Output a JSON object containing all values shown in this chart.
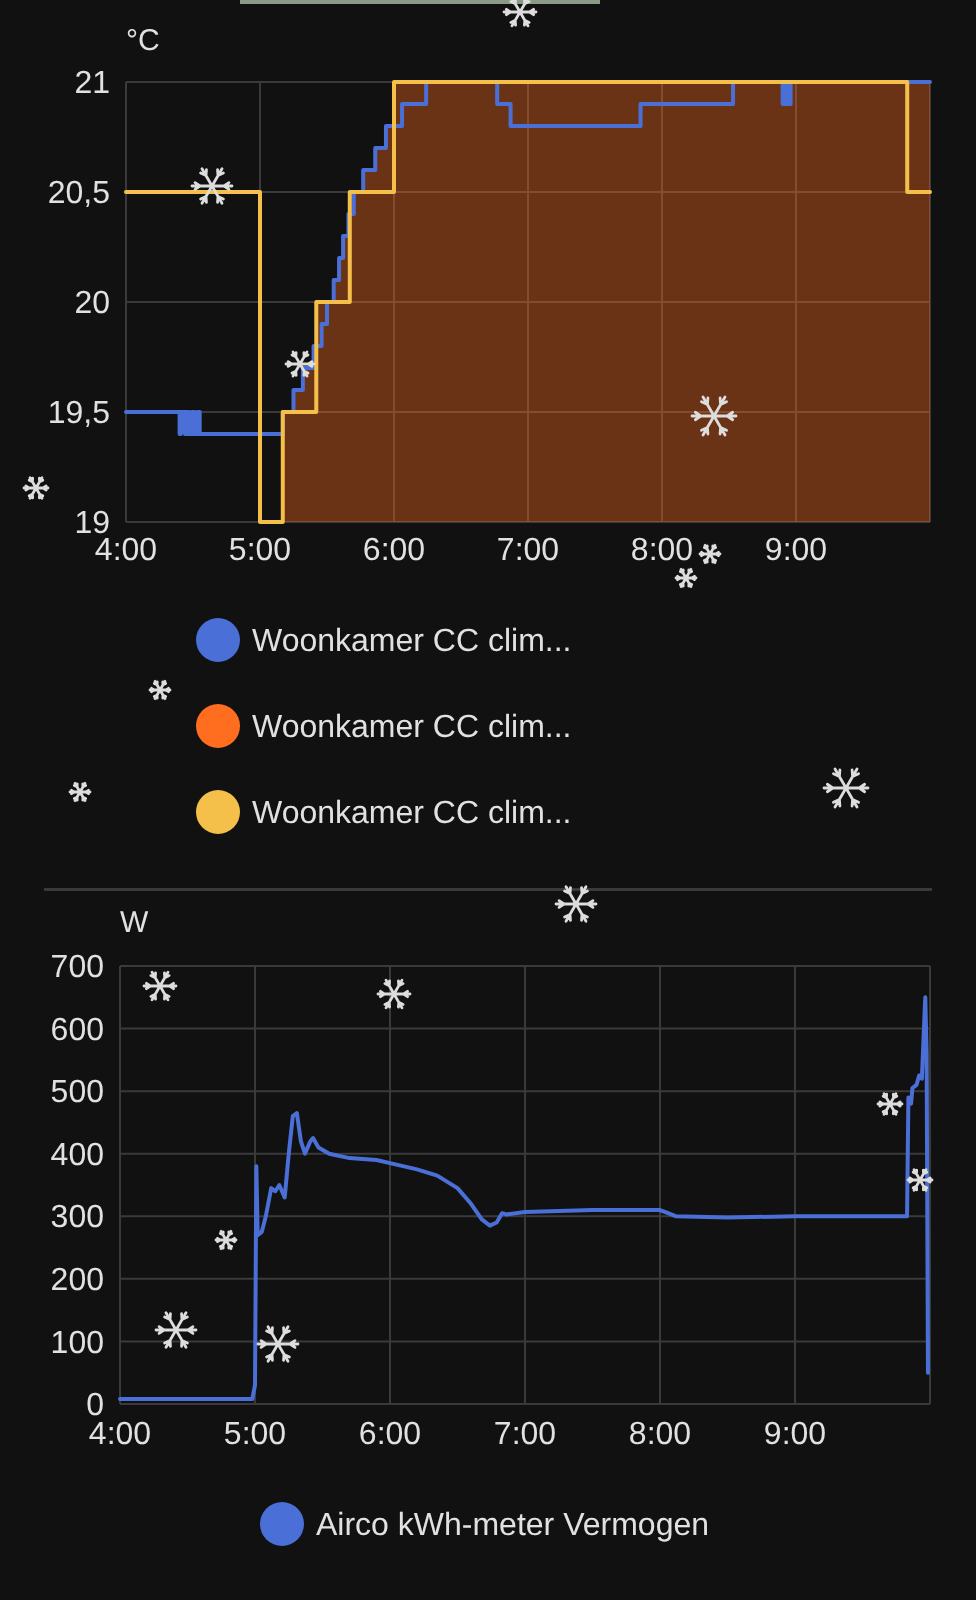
{
  "chart_data": [
    {
      "type": "step",
      "ylabel": "°C",
      "xlim": [
        4,
        10
      ],
      "ylim": [
        19,
        21
      ],
      "xticks": [
        {
          "value": 4,
          "label": "4:00"
        },
        {
          "value": 5,
          "label": "5:00"
        },
        {
          "value": 6,
          "label": "6:00"
        },
        {
          "value": 7,
          "label": "7:00"
        },
        {
          "value": 8,
          "label": "8:00"
        },
        {
          "value": 9,
          "label": "9:00"
        }
      ],
      "yticks": [
        19,
        {
          "value": 19.5,
          "label": "19,5"
        },
        20,
        {
          "value": 20.5,
          "label": "20,5"
        },
        21
      ],
      "grid": true,
      "legend": "bottom",
      "series": [
        {
          "name": "Woonkamer CC clim...",
          "color": "#4a6fd6",
          "x": [
            4,
            4.4,
            4.41,
            4.44,
            4.45,
            4.47,
            4.49,
            4.51,
            4.53,
            4.55,
            4.6,
            5.17,
            5.25,
            5.32,
            5.4,
            5.46,
            5.5,
            5.55,
            5.59,
            5.62,
            5.66,
            5.7,
            5.77,
            5.86,
            5.94,
            6.06,
            6.24,
            6.77,
            6.87,
            7.84,
            8.53,
            8.9,
            8.92,
            8.94,
            8.96,
            9.03,
            10
          ],
          "values": [
            19.5,
            19.4,
            19.5,
            19.4,
            19.5,
            19.4,
            19.5,
            19.4,
            19.5,
            19.4,
            19.4,
            19.5,
            19.6,
            19.7,
            19.8,
            19.9,
            20,
            20.1,
            20.2,
            20.3,
            20.4,
            20.5,
            20.6,
            20.7,
            20.8,
            20.9,
            21,
            20.9,
            20.8,
            20.9,
            21,
            20.9,
            21,
            20.9,
            21,
            21,
            21
          ]
        },
        {
          "name": "Woonkamer CC clim...",
          "type": "area",
          "color": "#ff6d1f",
          "x": [
            5.17,
            5.25,
            5.32,
            5.42,
            5.5,
            5.55,
            5.59,
            5.62,
            5.66,
            5.67,
            5.77,
            5.86,
            5.94,
            6,
            10
          ],
          "values": [
            19.5,
            19.6,
            19.7,
            20,
            20,
            20.1,
            20.2,
            20.3,
            20.4,
            20.5,
            20.6,
            20.7,
            20.8,
            21,
            21
          ]
        },
        {
          "name": "Woonkamer CC clim...",
          "color": "#f5c04a",
          "x": [
            4,
            5,
            5.17,
            5.42,
            5.67,
            6,
            9.83,
            10
          ],
          "values": [
            20.5,
            19,
            19.5,
            20,
            20.5,
            21,
            20.5,
            20.5
          ]
        }
      ]
    },
    {
      "type": "line",
      "ylabel": "W",
      "xlim": [
        4,
        10
      ],
      "ylim": [
        0,
        700
      ],
      "xticks": [
        {
          "value": 4,
          "label": "4:00"
        },
        {
          "value": 5,
          "label": "5:00"
        },
        {
          "value": 6,
          "label": "6:00"
        },
        {
          "value": 7,
          "label": "7:00"
        },
        {
          "value": 8,
          "label": "8:00"
        },
        {
          "value": 9,
          "label": "9:00"
        }
      ],
      "yticks": [
        0,
        100,
        200,
        300,
        400,
        500,
        600,
        700
      ],
      "grid": true,
      "legend": "bottom",
      "series": [
        {
          "name": "Airco kWh-meter Vermogen",
          "color": "#4a6fd6",
          "x": [
            4,
            4.98,
            5,
            5.01,
            5.02,
            5.05,
            5.08,
            5.12,
            5.15,
            5.18,
            5.22,
            5.25,
            5.28,
            5.31,
            5.34,
            5.37,
            5.41,
            5.43,
            5.47,
            5.55,
            5.7,
            5.9,
            6,
            6.2,
            6.35,
            6.5,
            6.6,
            6.68,
            6.74,
            6.79,
            6.83,
            6.86,
            7,
            7.5,
            8,
            8.06,
            8.12,
            8.5,
            9,
            9.83,
            9.84,
            9.86,
            9.87,
            9.9,
            9.92,
            9.94,
            9.955,
            9.965,
            9.975,
            9.985
          ],
          "values": [
            8,
            8,
            30,
            380,
            270,
            275,
            300,
            345,
            340,
            350,
            330,
            400,
            460,
            465,
            420,
            400,
            420,
            425,
            410,
            400,
            393,
            390,
            385,
            375,
            365,
            345,
            320,
            295,
            285,
            290,
            305,
            303,
            307,
            310,
            310,
            305,
            300,
            298,
            300,
            300,
            490,
            480,
            505,
            510,
            525,
            520,
            600,
            650,
            560,
            50
          ]
        }
      ]
    }
  ]
}
